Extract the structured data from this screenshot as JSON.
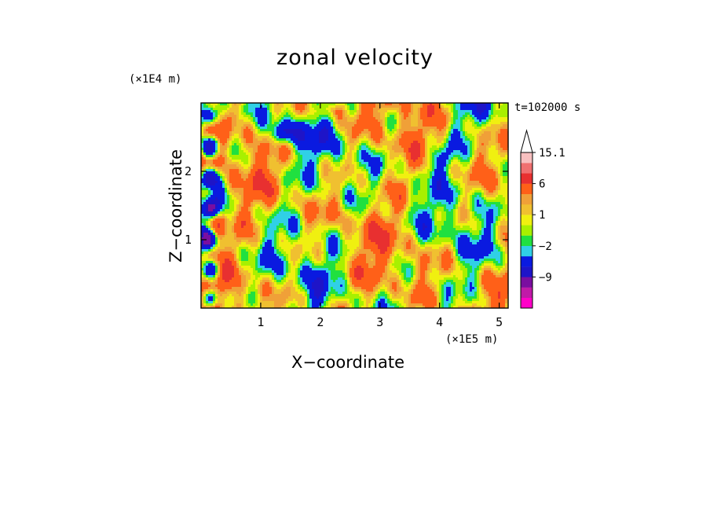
{
  "chart_data": {
    "type": "heatmap",
    "title": "zonal velocity",
    "xlabel": "X−coordinate",
    "ylabel": "Z−coordinate",
    "x_scale_label": "(×1E5 m)",
    "y_scale_label": "(×1E4 m)",
    "time_label": "t=102000 s",
    "xlim": [
      0,
      5.15
    ],
    "ylim": [
      0,
      3.0
    ],
    "x_ticks": [
      1,
      2,
      3,
      4,
      5
    ],
    "y_ticks": [
      1,
      2
    ],
    "colorbar": {
      "levels": [
        -15,
        -12,
        -9,
        -6,
        -3,
        -2,
        -1,
        0,
        1,
        2,
        3,
        6,
        9,
        12,
        15.1
      ],
      "tick_labels": [
        "15.1",
        "6",
        "1",
        "−2",
        "−9"
      ],
      "tick_values": [
        15.1,
        6,
        1,
        -2,
        -9
      ],
      "colors": [
        "#ff00c8",
        "#c01aa8",
        "#7a0ea0",
        "#1e14c8",
        "#0a1ae0",
        "#30d0e6",
        "#20e040",
        "#a8f000",
        "#f0f010",
        "#f0c030",
        "#f0a038",
        "#ff6018",
        "#e83030",
        "#f07070",
        "#f8c0c0"
      ],
      "extend_max": true
    }
  }
}
